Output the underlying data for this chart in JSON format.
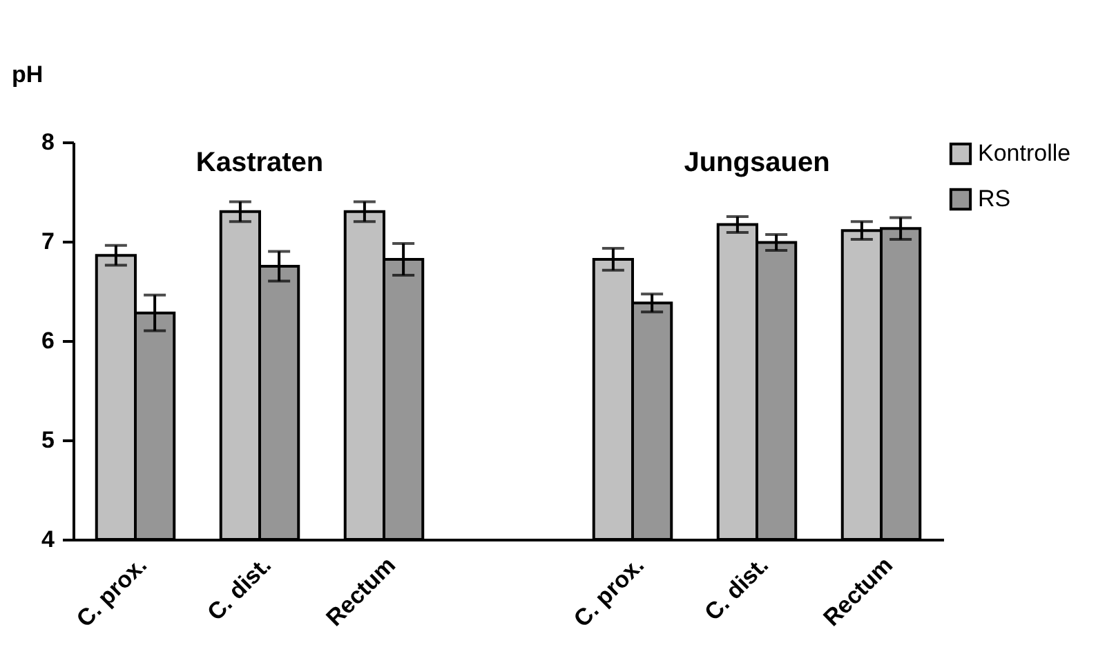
{
  "chart_data": {
    "type": "bar",
    "ylabel": "pH",
    "categories": [
      "C. prox.",
      "C. dist.",
      "Rectum",
      null,
      "C. prox.",
      "C. dist.",
      "Rectum"
    ],
    "series": [
      {
        "name": "Kontrolle",
        "color": "#c0c0c0",
        "values": [
          6.86,
          7.3,
          7.3,
          null,
          6.82,
          7.17,
          7.11
        ],
        "errors": [
          0.1,
          0.1,
          0.1,
          null,
          0.11,
          0.08,
          0.09
        ]
      },
      {
        "name": "RS",
        "color": "#969696",
        "values": [
          6.28,
          6.75,
          6.82,
          null,
          6.38,
          6.99,
          7.13
        ],
        "errors": [
          0.18,
          0.15,
          0.16,
          null,
          0.09,
          0.08,
          0.11
        ]
      }
    ],
    "ylim": [
      4,
      8
    ],
    "yticks": [
      4,
      5,
      6,
      7,
      8
    ],
    "annotations": [
      "Kastraten",
      "Jungsauen"
    ],
    "legend": "right",
    "grid": false
  }
}
